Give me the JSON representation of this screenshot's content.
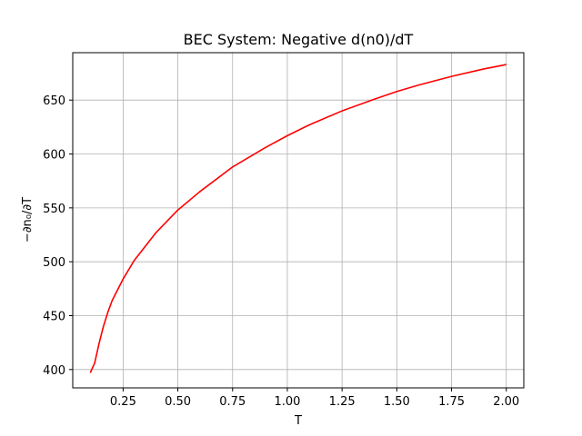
{
  "chart_data": {
    "type": "line",
    "title": "BEC System: Negative d(n0)/dT",
    "xlabel": "T",
    "ylabel": "−∂n₀/∂T",
    "xlim": [
      0.02,
      2.08
    ],
    "ylim": [
      383,
      694
    ],
    "grid": true,
    "x_ticks": [
      0.25,
      0.5,
      0.75,
      1.0,
      1.25,
      1.5,
      1.75,
      2.0
    ],
    "x_tick_labels": [
      "0.25",
      "0.50",
      "0.75",
      "1.00",
      "1.25",
      "1.50",
      "1.75",
      "2.00"
    ],
    "y_ticks": [
      400,
      450,
      500,
      550,
      600,
      650
    ],
    "y_tick_labels": [
      "400",
      "450",
      "500",
      "550",
      "600",
      "650"
    ],
    "series": [
      {
        "color": "#ff0000",
        "x": [
          0.1,
          0.12,
          0.14,
          0.16,
          0.18,
          0.2,
          0.25,
          0.3,
          0.4,
          0.5,
          0.6,
          0.75,
          0.9,
          1.0,
          1.1,
          1.25,
          1.4,
          1.5,
          1.6,
          1.75,
          1.9,
          2.0
        ],
        "y": [
          397,
          406,
          424,
          440,
          453,
          464,
          484,
          501,
          527,
          548,
          565,
          588,
          606,
          617,
          627,
          640,
          651,
          658,
          664,
          672,
          679,
          683
        ]
      }
    ]
  }
}
